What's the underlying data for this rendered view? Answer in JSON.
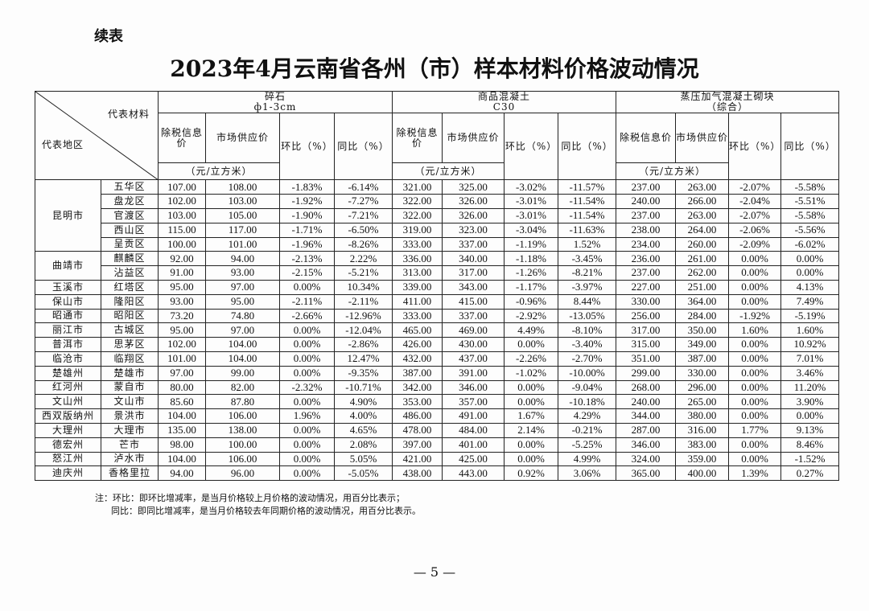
{
  "continued_label": "续表",
  "title": "2023年4月云南省各州（市）样本材料价格波动情况",
  "header": {
    "material_label": "代表材料",
    "region_label": "代表地区",
    "materials": [
      {
        "name": "碎石",
        "spec": "ф1-3cm"
      },
      {
        "name": "商品混凝土",
        "spec": "C30"
      },
      {
        "name": "蒸压加气混凝土砌块",
        "spec": "（综合）"
      }
    ],
    "col_tax_price": "除税信息价",
    "col_market_price": "市场供应价",
    "col_mom": "环比（%）",
    "col_yoy": "同比（%）",
    "unit": "（元/立方米）"
  },
  "groups": [
    {
      "city": "昆明市",
      "districts": [
        {
          "name": "五华区",
          "values": [
            "107.00",
            "108.00",
            "-1.83%",
            "-6.14%",
            "321.00",
            "325.00",
            "-3.02%",
            "-11.57%",
            "237.00",
            "263.00",
            "-2.07%",
            "-5.58%"
          ]
        },
        {
          "name": "盘龙区",
          "values": [
            "102.00",
            "103.00",
            "-1.92%",
            "-7.27%",
            "322.00",
            "326.00",
            "-3.01%",
            "-11.54%",
            "240.00",
            "266.00",
            "-2.04%",
            "-5.51%"
          ]
        },
        {
          "name": "官渡区",
          "values": [
            "103.00",
            "105.00",
            "-1.90%",
            "-7.21%",
            "322.00",
            "326.00",
            "-3.01%",
            "-11.54%",
            "237.00",
            "263.00",
            "-2.07%",
            "-5.58%"
          ]
        },
        {
          "name": "西山区",
          "values": [
            "115.00",
            "117.00",
            "-1.71%",
            "-6.50%",
            "319.00",
            "323.00",
            "-3.04%",
            "-11.63%",
            "238.00",
            "264.00",
            "-2.06%",
            "-5.56%"
          ]
        },
        {
          "name": "呈贡区",
          "values": [
            "100.00",
            "101.00",
            "-1.96%",
            "-8.26%",
            "333.00",
            "337.00",
            "-1.19%",
            "1.52%",
            "234.00",
            "260.00",
            "-2.09%",
            "-6.02%"
          ]
        }
      ]
    },
    {
      "city": "曲靖市",
      "districts": [
        {
          "name": "麒麟区",
          "values": [
            "92.00",
            "94.00",
            "-2.13%",
            "2.22%",
            "336.00",
            "340.00",
            "-1.18%",
            "-3.45%",
            "236.00",
            "261.00",
            "0.00%",
            "0.00%"
          ]
        },
        {
          "name": "沾益区",
          "values": [
            "91.00",
            "93.00",
            "-2.15%",
            "-5.21%",
            "313.00",
            "317.00",
            "-1.26%",
            "-8.21%",
            "237.00",
            "262.00",
            "0.00%",
            "0.00%"
          ]
        }
      ]
    },
    {
      "city": "玉溪市",
      "districts": [
        {
          "name": "红塔区",
          "values": [
            "95.00",
            "97.00",
            "0.00%",
            "10.34%",
            "339.00",
            "343.00",
            "-1.17%",
            "-3.97%",
            "227.00",
            "251.00",
            "0.00%",
            "4.13%"
          ]
        }
      ]
    },
    {
      "city": "保山市",
      "districts": [
        {
          "name": "隆阳区",
          "values": [
            "93.00",
            "95.00",
            "-2.11%",
            "-2.11%",
            "411.00",
            "415.00",
            "-0.96%",
            "8.44%",
            "330.00",
            "364.00",
            "0.00%",
            "7.49%"
          ]
        }
      ]
    },
    {
      "city": "昭通市",
      "districts": [
        {
          "name": "昭阳区",
          "values": [
            "73.20",
            "74.80",
            "-2.66%",
            "-12.96%",
            "333.00",
            "337.00",
            "-2.92%",
            "-13.05%",
            "256.00",
            "284.00",
            "-1.92%",
            "-5.19%"
          ]
        }
      ]
    },
    {
      "city": "丽江市",
      "districts": [
        {
          "name": "古城区",
          "values": [
            "95.00",
            "97.00",
            "0.00%",
            "-12.04%",
            "465.00",
            "469.00",
            "4.49%",
            "-8.10%",
            "317.00",
            "350.00",
            "1.60%",
            "1.60%"
          ]
        }
      ]
    },
    {
      "city": "普洱市",
      "districts": [
        {
          "name": "思茅区",
          "values": [
            "102.00",
            "104.00",
            "0.00%",
            "-2.86%",
            "426.00",
            "430.00",
            "0.00%",
            "-3.40%",
            "315.00",
            "349.00",
            "0.00%",
            "10.92%"
          ]
        }
      ]
    },
    {
      "city": "临沧市",
      "districts": [
        {
          "name": "临翔区",
          "values": [
            "101.00",
            "104.00",
            "0.00%",
            "12.47%",
            "432.00",
            "437.00",
            "-2.26%",
            "-2.70%",
            "351.00",
            "387.00",
            "0.00%",
            "7.01%"
          ]
        }
      ]
    },
    {
      "city": "楚雄州",
      "districts": [
        {
          "name": "楚雄市",
          "values": [
            "97.00",
            "99.00",
            "0.00%",
            "-9.35%",
            "387.00",
            "391.00",
            "-1.02%",
            "-10.00%",
            "299.00",
            "330.00",
            "0.00%",
            "3.46%"
          ]
        }
      ]
    },
    {
      "city": "红河州",
      "districts": [
        {
          "name": "蒙自市",
          "values": [
            "80.00",
            "82.00",
            "-2.32%",
            "-10.71%",
            "342.00",
            "346.00",
            "0.00%",
            "-9.04%",
            "268.00",
            "296.00",
            "0.00%",
            "11.20%"
          ]
        }
      ]
    },
    {
      "city": "文山州",
      "districts": [
        {
          "name": "文山市",
          "values": [
            "85.60",
            "87.80",
            "0.00%",
            "4.90%",
            "353.00",
            "357.00",
            "0.00%",
            "-10.18%",
            "240.00",
            "265.00",
            "0.00%",
            "3.90%"
          ]
        }
      ]
    },
    {
      "city": "西双版纳州",
      "districts": [
        {
          "name": "景洪市",
          "values": [
            "104.00",
            "106.00",
            "1.96%",
            "4.00%",
            "486.00",
            "491.00",
            "1.67%",
            "4.29%",
            "344.00",
            "380.00",
            "0.00%",
            "0.00%"
          ]
        }
      ]
    },
    {
      "city": "大理州",
      "districts": [
        {
          "name": "大理市",
          "values": [
            "135.00",
            "138.00",
            "0.00%",
            "4.65%",
            "478.00",
            "484.00",
            "2.14%",
            "-0.21%",
            "287.00",
            "316.00",
            "1.77%",
            "9.13%"
          ]
        }
      ]
    },
    {
      "city": "德宏州",
      "districts": [
        {
          "name": "芒市",
          "values": [
            "98.00",
            "100.00",
            "0.00%",
            "2.08%",
            "397.00",
            "401.00",
            "0.00%",
            "-5.25%",
            "346.00",
            "383.00",
            "0.00%",
            "8.46%"
          ]
        }
      ]
    },
    {
      "city": "怒江州",
      "districts": [
        {
          "name": "泸水市",
          "values": [
            "104.00",
            "106.00",
            "0.00%",
            "5.05%",
            "421.00",
            "425.00",
            "0.00%",
            "4.99%",
            "324.00",
            "359.00",
            "0.00%",
            "-1.52%"
          ]
        }
      ]
    },
    {
      "city": "迪庆州",
      "districts": [
        {
          "name": "香格里拉",
          "values": [
            "94.00",
            "96.00",
            "0.00%",
            "-5.05%",
            "438.00",
            "443.00",
            "0.92%",
            "3.06%",
            "365.00",
            "400.00",
            "1.39%",
            "0.27%"
          ]
        }
      ]
    }
  ],
  "notes": [
    "注：环比：即环比增减率，是当月价格较上月价格的波动情况，用百分比表示；",
    "同比：即同比增减率，是当月价格较去年同期价格的波动情况，用百分比表示。"
  ],
  "page_number": "— 5 —"
}
